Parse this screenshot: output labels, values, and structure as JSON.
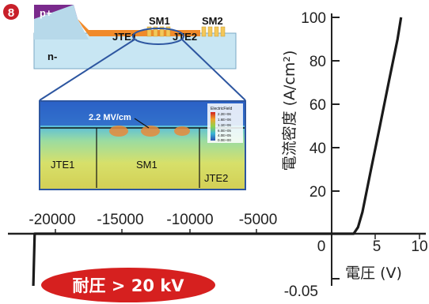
{
  "badge": {
    "number": "8",
    "color": "#c8202a"
  },
  "banner": {
    "text": "耐圧 > 20 kV",
    "color": "#d6201f"
  },
  "device": {
    "p_label": "p+",
    "n_label": "n-",
    "jte1": "JTE1",
    "jte2": "JTE2",
    "sm1": "SM1",
    "sm2": "SM2",
    "p_color": "#7a2a8c",
    "jte_color": "#f08a2a",
    "ring_color": "#f3c75a",
    "substrate_color": "#c8e6f3"
  },
  "simulation": {
    "field_label": "2.2 MV/cm",
    "regions": [
      "JTE1",
      "SM1",
      "JTE2"
    ],
    "colorbar_title": "ElectricField",
    "colorbar_ticks": [
      "2.2E+06",
      "1.6E+06",
      "1.1E+06",
      "6.0E+05",
      "4.0E+05",
      "0.0E+00"
    ]
  },
  "chart_data": {
    "type": "line",
    "xlabel": "電圧 (V)",
    "ylabel": "電流密度 (A/cm²)",
    "x_ticks_negative": [
      "-20000",
      "-15000",
      "-10000",
      "-5000"
    ],
    "x_ticks_positive": [
      "0",
      "5",
      "10"
    ],
    "y_ticks": [
      "100",
      "80",
      "60",
      "40",
      "20"
    ],
    "y_tick_negative": "-0.05",
    "ylim_forward": [
      0,
      100
    ],
    "xlim_forward": [
      0,
      10
    ],
    "xlim_reverse": [
      -22000,
      0
    ],
    "series": [
      {
        "segment": "forward",
        "x": [
          0,
          2.5,
          3.0,
          3.5,
          4.0,
          4.5,
          5.0,
          5.5,
          6.0,
          6.5,
          7.0,
          7.5,
          7.9
        ],
        "y": [
          0,
          0,
          3,
          10,
          20,
          30,
          40,
          50,
          60,
          70,
          80,
          90,
          100
        ]
      },
      {
        "segment": "reverse",
        "x": [
          0,
          -5000,
          -10000,
          -15000,
          -20000,
          -21500,
          -21600
        ],
        "y": [
          0,
          0,
          0,
          0,
          0,
          0,
          -0.05
        ]
      }
    ],
    "line_color": "#1a1a1a"
  }
}
